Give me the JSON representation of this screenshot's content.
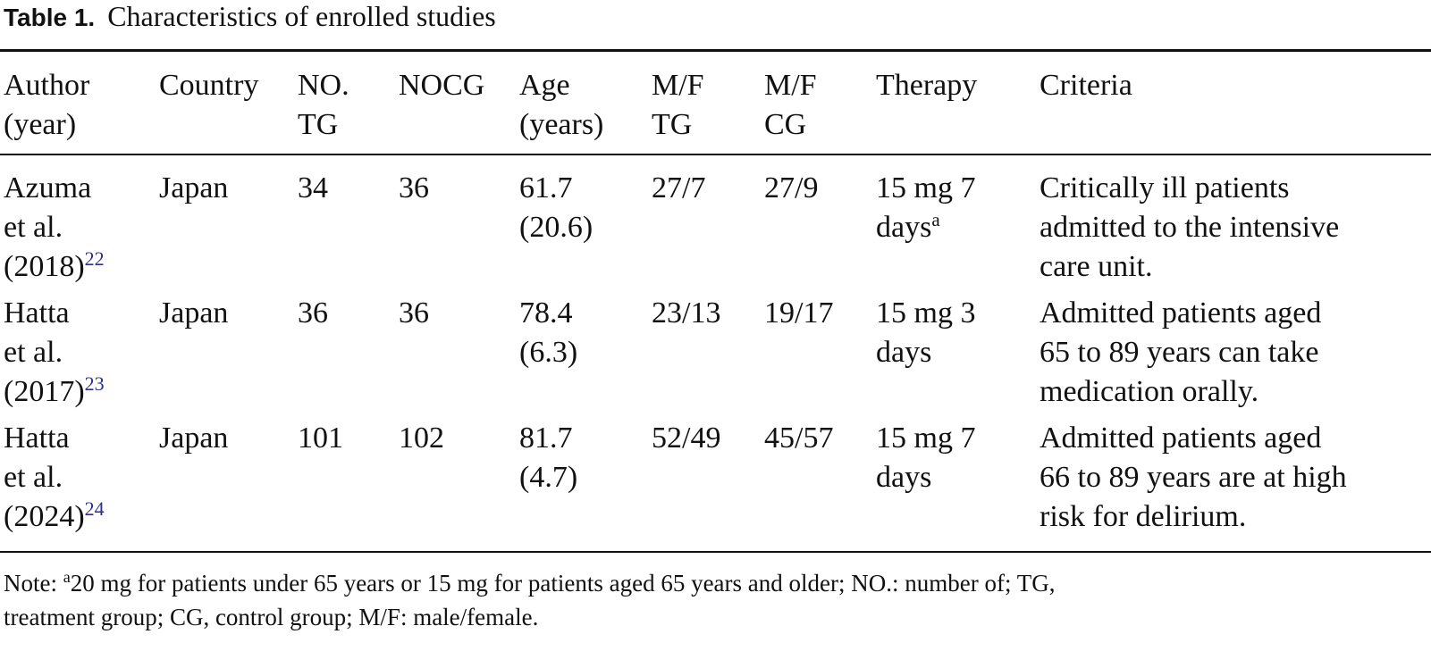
{
  "caption": {
    "label": "Table 1.",
    "title": "Characteristics of enrolled studies"
  },
  "table": {
    "headers": [
      {
        "lines": [
          "Author",
          "(year)"
        ]
      },
      {
        "lines": [
          "Country"
        ]
      },
      {
        "lines": [
          "NO.",
          "TG"
        ]
      },
      {
        "lines": [
          "NOCG"
        ]
      },
      {
        "lines": [
          "Age",
          "(years)"
        ]
      },
      {
        "lines": [
          "M/F",
          "TG"
        ]
      },
      {
        "lines": [
          "M/F",
          "CG"
        ]
      },
      {
        "lines": [
          "Therapy"
        ]
      },
      {
        "lines": [
          "Criteria"
        ]
      }
    ],
    "rows": [
      {
        "author": {
          "line1": "Azuma",
          "line2": "et al.",
          "year": "(2018)",
          "ref": "22"
        },
        "country": "Japan",
        "no_tg": "34",
        "nocg": "36",
        "age": {
          "line1": "61.7",
          "line2": "(20.6)"
        },
        "mf_tg": "27/7",
        "mf_cg": "27/9",
        "therapy": {
          "line1": "15 mg 7",
          "line2": "days",
          "footnote": "a"
        },
        "criteria": [
          "Critically ill patients",
          "admitted to the intensive",
          "care unit."
        ]
      },
      {
        "author": {
          "line1": "Hatta",
          "line2": "et al.",
          "year": "(2017)",
          "ref": "23"
        },
        "country": "Japan",
        "no_tg": "36",
        "nocg": "36",
        "age": {
          "line1": "78.4",
          "line2": "(6.3)"
        },
        "mf_tg": "23/13",
        "mf_cg": "19/17",
        "therapy": {
          "line1": "15 mg 3",
          "line2": "days",
          "footnote": ""
        },
        "criteria": [
          "Admitted patients aged",
          "65 to 89 years can take",
          "medication orally."
        ]
      },
      {
        "author": {
          "line1": "Hatta",
          "line2": "et al.",
          "year": "(2024)",
          "ref": "24"
        },
        "country": "Japan",
        "no_tg": "101",
        "nocg": "102",
        "age": {
          "line1": "81.7",
          "line2": "(4.7)"
        },
        "mf_tg": "52/49",
        "mf_cg": "45/57",
        "therapy": {
          "line1": "15 mg 7",
          "line2": "days",
          "footnote": ""
        },
        "criteria": [
          "Admitted patients aged",
          "66 to 89 years are at high",
          "risk for delirium."
        ]
      }
    ]
  },
  "note": {
    "prefix": "Note: ",
    "footnote_mark": "a",
    "line1_rest": "20 mg for patients under 65 years or 15 mg for patients aged 65 years and older; NO.: number of; TG,",
    "line2": "treatment group; CG, control group; M/F: male/female."
  }
}
